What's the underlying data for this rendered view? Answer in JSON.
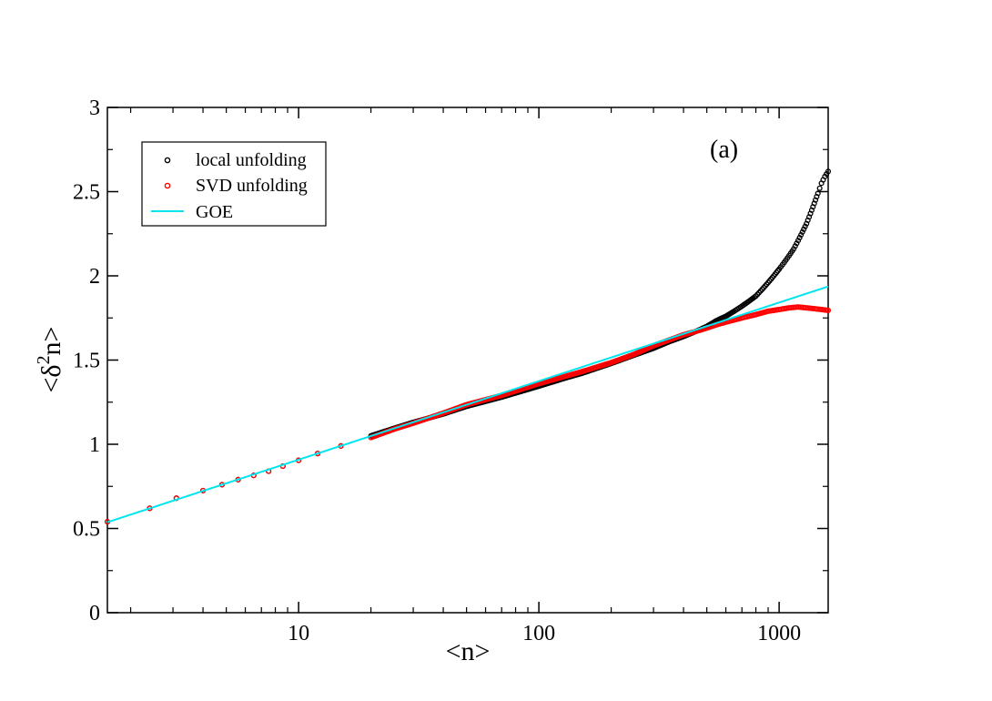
{
  "chart_data": {
    "type": "scatter",
    "title": "",
    "annotation": "(a)",
    "xlabel": "<n>",
    "ylabel": {
      "base": "<δ",
      "sup": "2",
      "rest": "n>"
    },
    "xscale": "log",
    "xlim": [
      1.6,
      1600
    ],
    "ylim": [
      0,
      3
    ],
    "x_ticks": [
      10,
      100,
      1000
    ],
    "x_tick_labels": [
      "10",
      "100",
      "1000"
    ],
    "y_ticks": [
      0,
      0.5,
      1,
      1.5,
      2,
      2.5,
      3
    ],
    "y_tick_labels": [
      "0",
      "0.5",
      "1",
      "1.5",
      "2",
      "2.5",
      "3"
    ],
    "legend_position": "top-left",
    "series": [
      {
        "name": "local unfolding",
        "style": "markers",
        "color": "#000000",
        "points": [
          [
            1.6,
            0.54
          ],
          [
            2.4,
            0.62
          ],
          [
            3.1,
            0.68
          ],
          [
            4.0,
            0.725
          ],
          [
            4.8,
            0.76
          ],
          [
            5.6,
            0.79
          ],
          [
            6.5,
            0.815
          ],
          [
            7.5,
            0.84
          ],
          [
            8.6,
            0.87
          ],
          [
            10,
            0.905
          ],
          [
            12,
            0.945
          ],
          [
            15,
            0.99
          ],
          [
            20,
            1.05
          ],
          [
            25,
            1.095
          ],
          [
            30,
            1.13
          ],
          [
            40,
            1.18
          ],
          [
            50,
            1.225
          ],
          [
            70,
            1.28
          ],
          [
            100,
            1.345
          ],
          [
            130,
            1.395
          ],
          [
            150,
            1.42
          ],
          [
            200,
            1.48
          ],
          [
            250,
            1.53
          ],
          [
            300,
            1.57
          ],
          [
            350,
            1.61
          ],
          [
            400,
            1.64
          ],
          [
            450,
            1.67
          ],
          [
            500,
            1.7
          ],
          [
            550,
            1.735
          ],
          [
            600,
            1.76
          ],
          [
            650,
            1.79
          ],
          [
            700,
            1.82
          ],
          [
            750,
            1.85
          ],
          [
            800,
            1.88
          ],
          [
            850,
            1.92
          ],
          [
            900,
            1.96
          ],
          [
            950,
            2.0
          ],
          [
            1000,
            2.04
          ],
          [
            1050,
            2.08
          ],
          [
            1100,
            2.12
          ],
          [
            1150,
            2.16
          ],
          [
            1200,
            2.21
          ],
          [
            1250,
            2.26
          ],
          [
            1300,
            2.31
          ],
          [
            1350,
            2.37
          ],
          [
            1400,
            2.43
          ],
          [
            1450,
            2.49
          ],
          [
            1500,
            2.55
          ],
          [
            1550,
            2.59
          ],
          [
            1600,
            2.62
          ]
        ]
      },
      {
        "name": "SVD unfolding",
        "style": "markers",
        "color": "#ff0000",
        "points": [
          [
            1.6,
            0.54
          ],
          [
            2.4,
            0.62
          ],
          [
            3.1,
            0.68
          ],
          [
            4.0,
            0.725
          ],
          [
            4.8,
            0.76
          ],
          [
            5.6,
            0.79
          ],
          [
            6.5,
            0.815
          ],
          [
            7.5,
            0.84
          ],
          [
            8.6,
            0.87
          ],
          [
            10,
            0.905
          ],
          [
            12,
            0.945
          ],
          [
            15,
            0.99
          ],
          [
            20,
            1.04
          ],
          [
            25,
            1.09
          ],
          [
            30,
            1.125
          ],
          [
            40,
            1.185
          ],
          [
            50,
            1.235
          ],
          [
            70,
            1.29
          ],
          [
            100,
            1.36
          ],
          [
            130,
            1.405
          ],
          [
            150,
            1.43
          ],
          [
            200,
            1.485
          ],
          [
            250,
            1.535
          ],
          [
            300,
            1.585
          ],
          [
            350,
            1.62
          ],
          [
            400,
            1.65
          ],
          [
            450,
            1.67
          ],
          [
            500,
            1.69
          ],
          [
            550,
            1.71
          ],
          [
            600,
            1.725
          ],
          [
            700,
            1.75
          ],
          [
            800,
            1.77
          ],
          [
            900,
            1.79
          ],
          [
            1000,
            1.8
          ],
          [
            1100,
            1.81
          ],
          [
            1200,
            1.815
          ],
          [
            1300,
            1.81
          ],
          [
            1400,
            1.805
          ],
          [
            1500,
            1.8
          ],
          [
            1600,
            1.795
          ]
        ]
      },
      {
        "name": "GOE",
        "style": "line",
        "color": "#00e5ee",
        "function": "0.2026*(ln(2*pi*x)+0.5772+1-pi^2/8)"
      }
    ]
  }
}
